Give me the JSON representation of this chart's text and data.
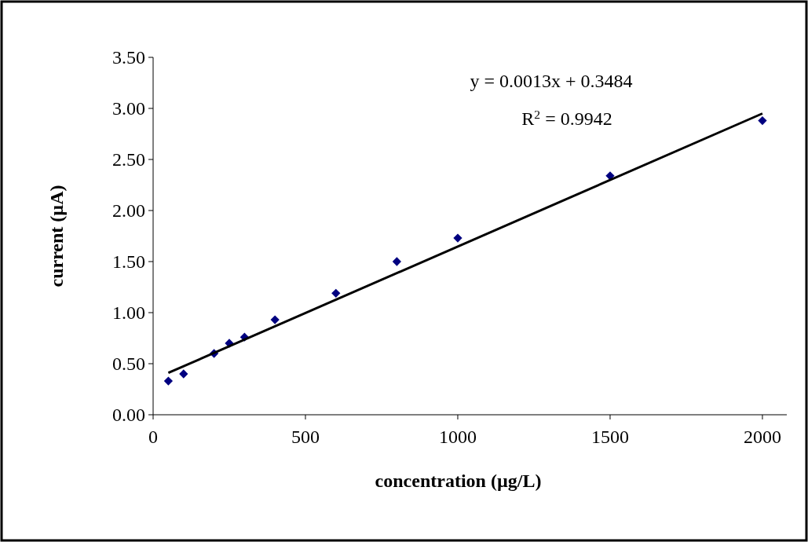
{
  "chart_data": {
    "type": "scatter",
    "xlabel": "concentration (µg/L)",
    "ylabel": "current (µA)",
    "xlim": [
      0,
      2080
    ],
    "xticks": [
      0,
      500,
      1000,
      1500,
      2000
    ],
    "ylim": [
      0,
      3.5
    ],
    "yticks": [
      {
        "value": 0,
        "label": "0.00"
      },
      {
        "value": 0.5,
        "label": "0.50"
      },
      {
        "value": 1,
        "label": "1.00"
      },
      {
        "value": 1.5,
        "label": "1.50"
      },
      {
        "value": 2,
        "label": "2.00"
      },
      {
        "value": 2.5,
        "label": "2.50"
      },
      {
        "value": 3,
        "label": "3.00"
      },
      {
        "value": 3.5,
        "label": "3.50"
      }
    ],
    "grid": false,
    "marker": "diamond",
    "series": [
      {
        "color": "#000080",
        "x": [
          50,
          100,
          200,
          250,
          300,
          400,
          600,
          800,
          1000,
          1500,
          2000
        ],
        "values": [
          0.33,
          0.4,
          0.6,
          0.7,
          0.76,
          0.93,
          1.19,
          1.5,
          1.73,
          2.34,
          2.88
        ]
      },
      {
        "type": "line",
        "color": "#000000",
        "x": [
          50,
          2000
        ],
        "values": [
          0.41,
          2.95
        ],
        "marker": "none",
        "line_style": "solid"
      }
    ],
    "annotations": [
      "y = 0.0013x + 0.3484",
      "R$^{2}$ = 0.9942"
    ]
  }
}
